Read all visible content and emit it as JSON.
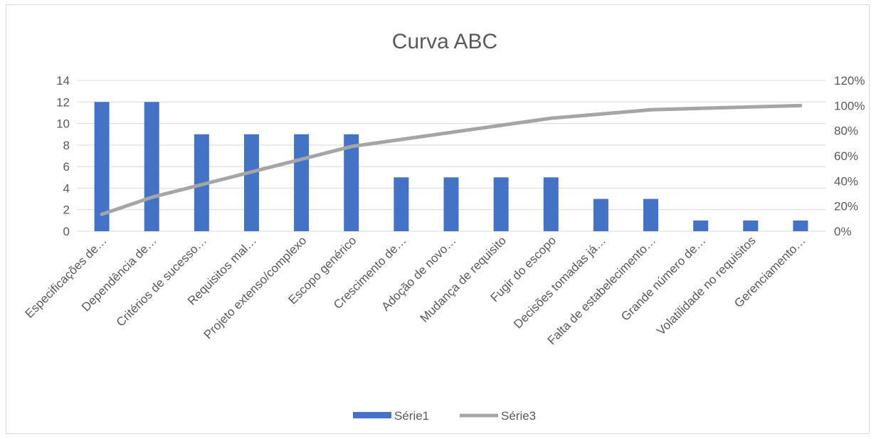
{
  "chart_data": {
    "type": "bar",
    "title": "Curva ABC",
    "categories": [
      "Especificações de…",
      "Dependência de…",
      "Critérios de sucesso…",
      "Requisitos mal…",
      "Projeto extenso/complexo",
      "Escopo genérico",
      "Crescimento de…",
      "Adoção de novo…",
      "Mudança de requisito",
      "Fugir do escopo",
      "Decisões tomadas já…",
      "Falta de estabelecimento…",
      "Grande número de…",
      "Volatilidade no requisitos",
      "Gerenciamento…"
    ],
    "series": [
      {
        "name": "Série1",
        "type": "bar",
        "axis": "left",
        "color": "#4472c4",
        "values": [
          12,
          12,
          9,
          9,
          9,
          9,
          5,
          5,
          5,
          5,
          3,
          3,
          1,
          1,
          1
        ]
      },
      {
        "name": "Série3",
        "type": "line",
        "axis": "right",
        "color": "#a5a5a5",
        "values": [
          0.1348,
          0.2697,
          0.3708,
          0.4719,
          0.573,
          0.6742,
          0.7303,
          0.7865,
          0.8427,
          0.8989,
          0.9326,
          0.9663,
          0.9775,
          0.9888,
          1.0
        ]
      }
    ],
    "y_left": {
      "min": 0,
      "max": 14,
      "ticks": [
        "0",
        "2",
        "4",
        "6",
        "8",
        "10",
        "12",
        "14"
      ]
    },
    "y_right": {
      "min": 0,
      "max": 1.2,
      "ticks": [
        "0%",
        "20%",
        "40%",
        "60%",
        "80%",
        "100%",
        "120%"
      ]
    },
    "grid": true,
    "legend": "bottom"
  }
}
